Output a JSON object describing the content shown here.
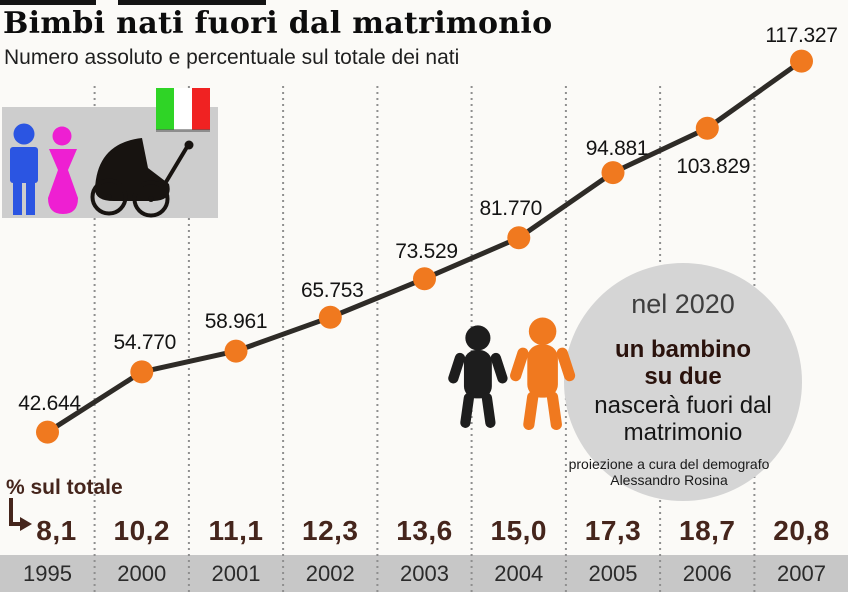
{
  "chart_data": {
    "type": "line",
    "title": "Bimbi nati fuori dal matrimonio",
    "subtitle": "Numero assoluto e percentuale sul totale dei nati",
    "categories": [
      "1995",
      "2000",
      "2001",
      "2002",
      "2003",
      "2004",
      "2005",
      "2006",
      "2007"
    ],
    "series": [
      {
        "name": "Numero assoluto",
        "values": [
          42644,
          54770,
          58961,
          65753,
          73529,
          81770,
          94881,
          103829,
          117327
        ],
        "labels": [
          "42.644",
          "54.770",
          "58.961",
          "65.753",
          "73.529",
          "81.770",
          "94.881",
          "103.829",
          "117.327"
        ]
      },
      {
        "name": "% sul totale",
        "values": [
          8.1,
          10.2,
          11.1,
          12.3,
          13.6,
          15.0,
          17.3,
          18.7,
          20.8
        ],
        "labels": [
          "8,1",
          "10,2",
          "11,1",
          "12,3",
          "13,6",
          "15,0",
          "17,3",
          "18,7",
          "20,8"
        ]
      }
    ],
    "percent_axis_label": "% sul totale",
    "ylim": [
      40000,
      120000
    ],
    "grid": "vertical-dotted",
    "legend_position": "none"
  },
  "annotation": {
    "heading": "nel 2020",
    "bold": "un bambino su due",
    "rest": "nascerà fuori dal matrimonio",
    "source": "proiezione a cura del demografo Alessandro Rosina"
  },
  "icons": {
    "legend": [
      "man-icon",
      "woman-icon",
      "stroller-icon",
      "italy-flag-icon"
    ],
    "chart": [
      "baby-icon-dark",
      "baby-icon-orange"
    ],
    "percent_pointer": "corner-down-right-arrow-icon"
  },
  "colors": {
    "dot_orange": "#f0791f",
    "line_dark": "#2e2b27",
    "grid_gray": "#8f8f8f",
    "panel_gray": "#cdcdcd",
    "circle_gray": "#d5d5d5",
    "band_gray": "#c7c7c7",
    "percent_brown": "#45251c",
    "man_blue": "#2b55e2",
    "woman_pink": "#ee1fd2",
    "flag_green": "#2fd426",
    "flag_red": "#f02222",
    "baby_dark": "#1d1d1d"
  }
}
